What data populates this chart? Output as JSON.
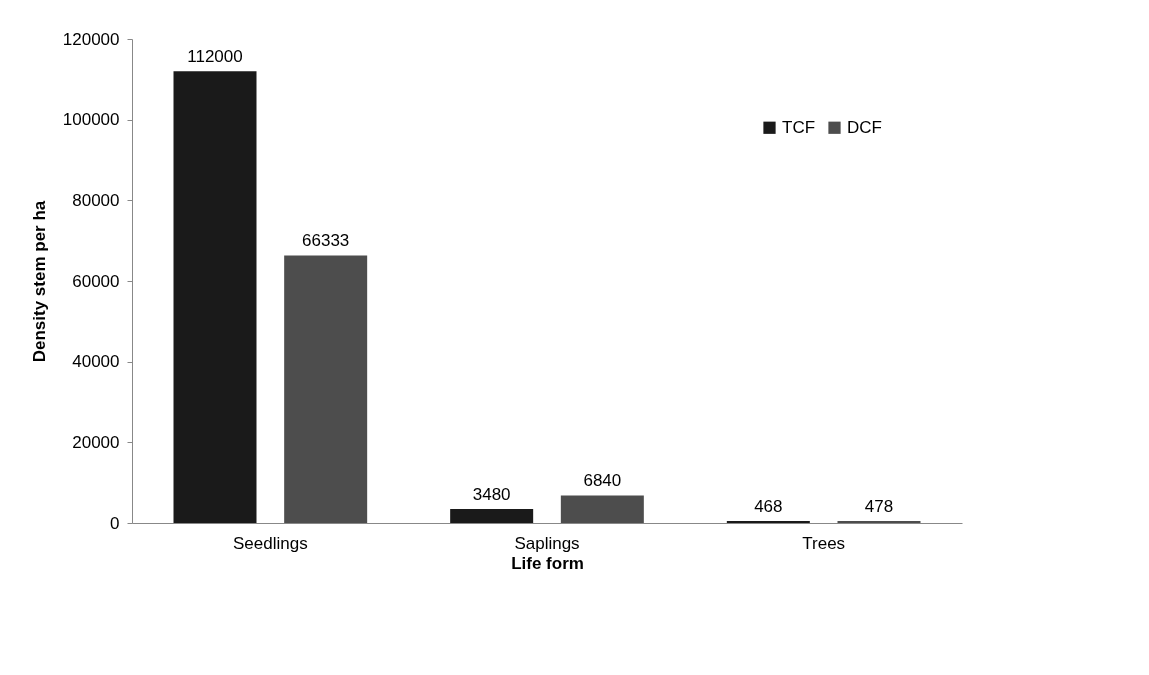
{
  "chart_data": {
    "type": "bar",
    "xlabel": "Life form",
    "ylabel": "Density stem per ha",
    "categories": [
      "Seedlings",
      "Saplings",
      "Trees"
    ],
    "series": [
      {
        "name": "TCF",
        "color": "#1a1a1a",
        "values": [
          112000,
          3480,
          468
        ]
      },
      {
        "name": "DCF",
        "color": "#4d4d4d",
        "values": [
          66333,
          6840,
          478
        ]
      }
    ],
    "ylim": [
      0,
      120000
    ],
    "yticks": [
      0,
      20000,
      40000,
      60000,
      80000,
      100000,
      120000
    ],
    "grid": false,
    "legend": "top right",
    "data_labels": true
  }
}
